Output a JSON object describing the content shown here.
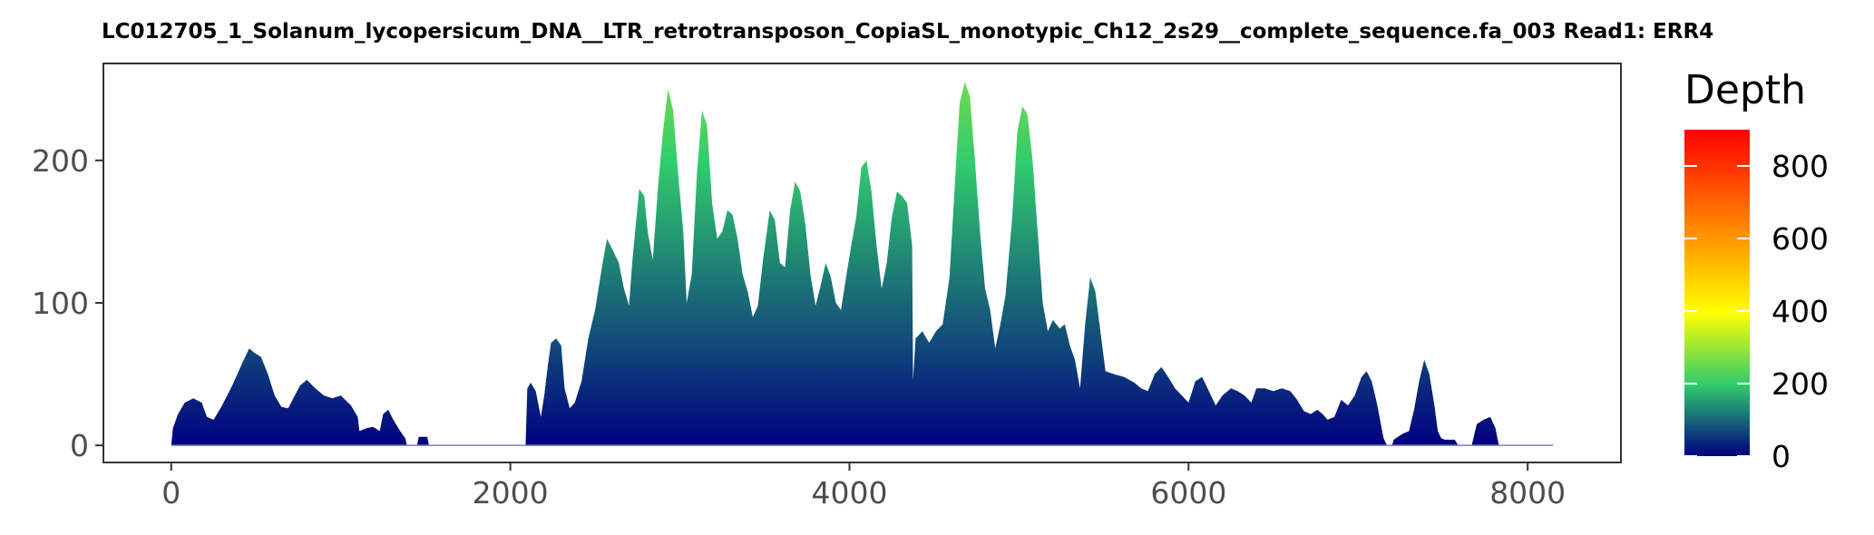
{
  "chart_data": {
    "type": "area",
    "title": "LC012705_1_Solanum_lycopersicum_DNA__LTR_retrotransposon_CopiaSL_monotypic_Ch12_2s29__complete_sequence.fa_003   Read1: ERR4",
    "xlabel": "",
    "ylabel": "",
    "xlim": [
      -400,
      8550
    ],
    "ylim": [
      -12,
      268
    ],
    "x_ticks": [
      0,
      2000,
      4000,
      6000,
      8000
    ],
    "x_tick_labels": [
      "0",
      "2000",
      "4000",
      "6000",
      "8000"
    ],
    "y_ticks": [
      0,
      100,
      200
    ],
    "y_tick_labels": [
      "0",
      "100",
      "200"
    ],
    "grid": false,
    "series": [
      {
        "name": "",
        "points": [
          [
            0,
            0
          ],
          [
            10,
            12
          ],
          [
            40,
            22
          ],
          [
            80,
            30
          ],
          [
            130,
            33
          ],
          [
            180,
            30
          ],
          [
            210,
            20
          ],
          [
            250,
            18
          ],
          [
            300,
            28
          ],
          [
            360,
            42
          ],
          [
            420,
            58
          ],
          [
            460,
            68
          ],
          [
            490,
            65
          ],
          [
            530,
            62
          ],
          [
            570,
            50
          ],
          [
            610,
            35
          ],
          [
            650,
            27
          ],
          [
            690,
            26
          ],
          [
            720,
            33
          ],
          [
            760,
            42
          ],
          [
            800,
            46
          ],
          [
            850,
            40
          ],
          [
            900,
            35
          ],
          [
            950,
            33
          ],
          [
            1000,
            35
          ],
          [
            1060,
            28
          ],
          [
            1100,
            20
          ],
          [
            1110,
            10
          ],
          [
            1150,
            12
          ],
          [
            1190,
            13
          ],
          [
            1230,
            10
          ],
          [
            1250,
            22
          ],
          [
            1280,
            25
          ],
          [
            1310,
            18
          ],
          [
            1350,
            10
          ],
          [
            1380,
            5
          ],
          [
            1390,
            0
          ],
          [
            1450,
            0
          ],
          [
            1460,
            6
          ],
          [
            1510,
            6
          ],
          [
            1520,
            0
          ],
          [
            2090,
            0
          ],
          [
            2100,
            40
          ],
          [
            2120,
            44
          ],
          [
            2150,
            38
          ],
          [
            2180,
            20
          ],
          [
            2200,
            35
          ],
          [
            2220,
            55
          ],
          [
            2240,
            72
          ],
          [
            2270,
            75
          ],
          [
            2300,
            70
          ],
          [
            2320,
            40
          ],
          [
            2350,
            26
          ],
          [
            2380,
            30
          ],
          [
            2420,
            45
          ],
          [
            2460,
            75
          ],
          [
            2500,
            95
          ],
          [
            2540,
            125
          ],
          [
            2570,
            145
          ],
          [
            2600,
            138
          ],
          [
            2640,
            128
          ],
          [
            2670,
            110
          ],
          [
            2700,
            98
          ],
          [
            2720,
            130
          ],
          [
            2760,
            180
          ],
          [
            2790,
            175
          ],
          [
            2810,
            150
          ],
          [
            2840,
            130
          ],
          [
            2870,
            180
          ],
          [
            2900,
            220
          ],
          [
            2930,
            250
          ],
          [
            2960,
            235
          ],
          [
            2990,
            190
          ],
          [
            3020,
            150
          ],
          [
            3040,
            100
          ],
          [
            3070,
            120
          ],
          [
            3100,
            190
          ],
          [
            3130,
            235
          ],
          [
            3160,
            225
          ],
          [
            3190,
            170
          ],
          [
            3220,
            145
          ],
          [
            3250,
            150
          ],
          [
            3280,
            165
          ],
          [
            3310,
            162
          ],
          [
            3340,
            145
          ],
          [
            3370,
            120
          ],
          [
            3400,
            108
          ],
          [
            3430,
            90
          ],
          [
            3460,
            98
          ],
          [
            3490,
            130
          ],
          [
            3530,
            165
          ],
          [
            3560,
            158
          ],
          [
            3590,
            128
          ],
          [
            3620,
            125
          ],
          [
            3650,
            165
          ],
          [
            3680,
            185
          ],
          [
            3710,
            178
          ],
          [
            3740,
            155
          ],
          [
            3770,
            120
          ],
          [
            3800,
            98
          ],
          [
            3830,
            112
          ],
          [
            3860,
            128
          ],
          [
            3890,
            118
          ],
          [
            3920,
            100
          ],
          [
            3950,
            95
          ],
          [
            3980,
            118
          ],
          [
            4010,
            140
          ],
          [
            4040,
            160
          ],
          [
            4070,
            195
          ],
          [
            4100,
            200
          ],
          [
            4130,
            178
          ],
          [
            4160,
            140
          ],
          [
            4190,
            110
          ],
          [
            4220,
            128
          ],
          [
            4250,
            160
          ],
          [
            4280,
            178
          ],
          [
            4310,
            175
          ],
          [
            4340,
            170
          ],
          [
            4370,
            140
          ],
          [
            4375,
            45
          ],
          [
            4390,
            75
          ],
          [
            4430,
            80
          ],
          [
            4470,
            72
          ],
          [
            4510,
            80
          ],
          [
            4550,
            85
          ],
          [
            4590,
            118
          ],
          [
            4620,
            180
          ],
          [
            4650,
            240
          ],
          [
            4680,
            255
          ],
          [
            4710,
            245
          ],
          [
            4740,
            200
          ],
          [
            4770,
            150
          ],
          [
            4800,
            110
          ],
          [
            4830,
            95
          ],
          [
            4860,
            68
          ],
          [
            4890,
            85
          ],
          [
            4920,
            105
          ],
          [
            4960,
            160
          ],
          [
            4990,
            220
          ],
          [
            5020,
            238
          ],
          [
            5050,
            232
          ],
          [
            5080,
            200
          ],
          [
            5110,
            150
          ],
          [
            5140,
            100
          ],
          [
            5170,
            80
          ],
          [
            5200,
            88
          ],
          [
            5240,
            82
          ],
          [
            5270,
            85
          ],
          [
            5300,
            70
          ],
          [
            5330,
            60
          ],
          [
            5360,
            40
          ],
          [
            5390,
            85
          ],
          [
            5420,
            118
          ],
          [
            5450,
            108
          ],
          [
            5480,
            80
          ],
          [
            5510,
            52
          ],
          [
            5560,
            50
          ],
          [
            5620,
            48
          ],
          [
            5680,
            44
          ],
          [
            5720,
            40
          ],
          [
            5760,
            38
          ],
          [
            5800,
            50
          ],
          [
            5840,
            55
          ],
          [
            5880,
            48
          ],
          [
            5920,
            40
          ],
          [
            5960,
            35
          ],
          [
            6000,
            30
          ],
          [
            6040,
            45
          ],
          [
            6080,
            48
          ],
          [
            6120,
            38
          ],
          [
            6160,
            28
          ],
          [
            6200,
            35
          ],
          [
            6250,
            40
          ],
          [
            6290,
            38
          ],
          [
            6330,
            35
          ],
          [
            6370,
            30
          ],
          [
            6400,
            40
          ],
          [
            6450,
            40
          ],
          [
            6500,
            38
          ],
          [
            6550,
            40
          ],
          [
            6600,
            38
          ],
          [
            6640,
            32
          ],
          [
            6680,
            24
          ],
          [
            6720,
            22
          ],
          [
            6760,
            25
          ],
          [
            6790,
            22
          ],
          [
            6820,
            18
          ],
          [
            6860,
            20
          ],
          [
            6900,
            32
          ],
          [
            6940,
            28
          ],
          [
            6980,
            35
          ],
          [
            7020,
            48
          ],
          [
            7050,
            52
          ],
          [
            7080,
            45
          ],
          [
            7110,
            30
          ],
          [
            7150,
            5
          ],
          [
            7170,
            0
          ],
          [
            7200,
            0
          ],
          [
            7210,
            4
          ],
          [
            7260,
            8
          ],
          [
            7300,
            10
          ],
          [
            7330,
            25
          ],
          [
            7360,
            45
          ],
          [
            7390,
            60
          ],
          [
            7420,
            50
          ],
          [
            7450,
            28
          ],
          [
            7470,
            10
          ],
          [
            7490,
            5
          ],
          [
            7510,
            4
          ],
          [
            7540,
            4
          ],
          [
            7570,
            4
          ],
          [
            7590,
            0
          ],
          [
            7670,
            0
          ],
          [
            7680,
            5
          ],
          [
            7700,
            15
          ],
          [
            7740,
            18
          ],
          [
            7780,
            20
          ],
          [
            7810,
            12
          ],
          [
            7830,
            0
          ],
          [
            8150,
            0
          ]
        ]
      }
    ],
    "legend": {
      "title": "Depth",
      "placement": "right",
      "range": [
        0,
        900
      ],
      "ticks": [
        0,
        200,
        400,
        600,
        800
      ],
      "tick_labels": [
        "0",
        "200",
        "400",
        "600",
        "800"
      ],
      "colors": [
        "#000080",
        "#30CC6E",
        "#FFFF00",
        "#FF9900",
        "#FF0000"
      ],
      "color_stops": [
        0,
        0.22,
        0.44,
        0.66,
        1
      ]
    },
    "colors": {
      "panel_border": "#333333",
      "axis_text": "#4d4d4d",
      "zero_line": "#7b7bd6"
    }
  }
}
